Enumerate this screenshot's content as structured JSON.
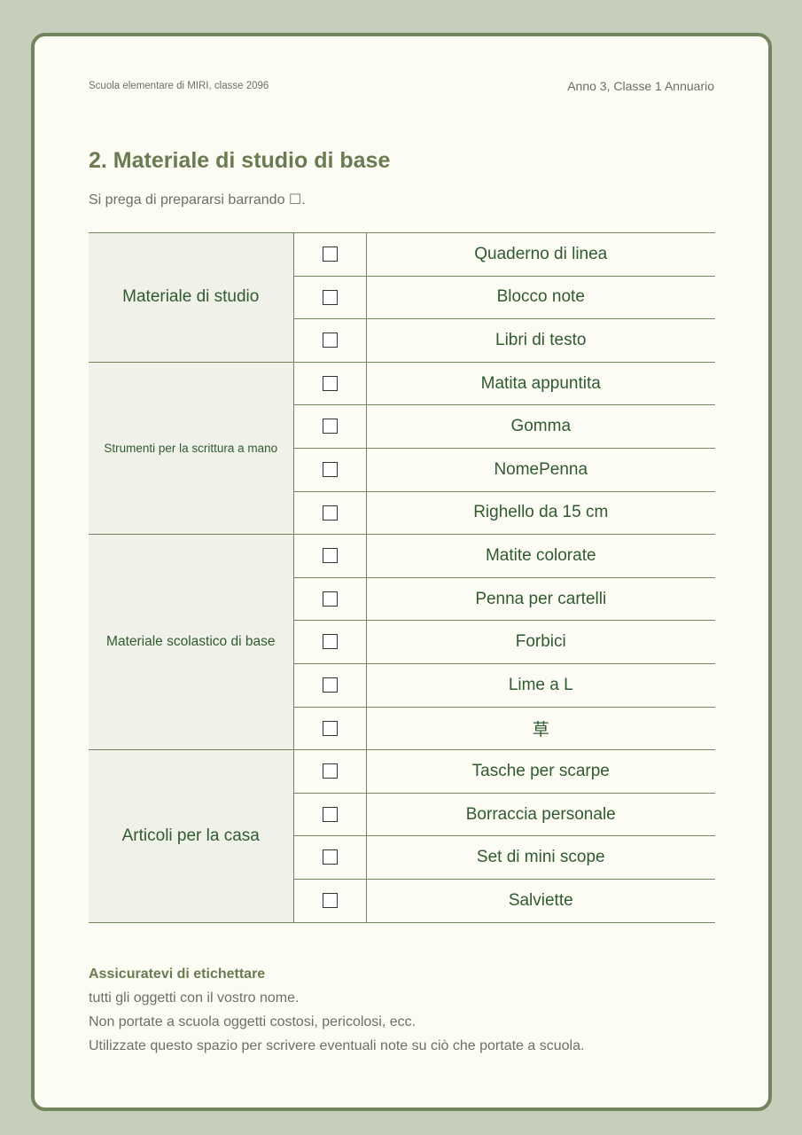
{
  "header": {
    "school": "Scuola elementare di MIRI, classe 2096",
    "yearbook": "Anno 3, Classe 1 Annuario"
  },
  "section": {
    "title": "2. Materiale di studio di base",
    "instruction": "Si prega di prepararsi barrando ☐."
  },
  "groups": [
    {
      "label": "Materiale di studio",
      "size": "lg",
      "items": [
        {
          "label": "Quaderno di linea",
          "checked": false
        },
        {
          "label": "Blocco note",
          "checked": false
        },
        {
          "label": "Libri di testo",
          "checked": false
        }
      ]
    },
    {
      "label": "Strumenti per la scrittura a mano",
      "size": "sm",
      "items": [
        {
          "label": "Matita appuntita",
          "checked": false
        },
        {
          "label": "Gomma",
          "checked": false
        },
        {
          "label": "NomePenna",
          "checked": false
        },
        {
          "label": "Righello da 15 cm",
          "checked": false
        }
      ]
    },
    {
      "label": "Materiale scolastico di base",
      "size": "md",
      "items": [
        {
          "label": "Matite colorate",
          "checked": false
        },
        {
          "label": "Penna per cartelli",
          "checked": false
        },
        {
          "label": "Forbici",
          "checked": false
        },
        {
          "label": "Lime a L",
          "checked": false
        },
        {
          "label": "草",
          "checked": false
        }
      ]
    },
    {
      "label": "Articoli per la casa",
      "size": "lg",
      "items": [
        {
          "label": "Tasche per scarpe",
          "checked": false
        },
        {
          "label": "Borraccia personale",
          "checked": false
        },
        {
          "label": "Set di mini scope",
          "checked": false
        },
        {
          "label": "Salviette",
          "checked": false
        }
      ]
    }
  ],
  "notes": {
    "heading": "Assicuratevi di etichettare",
    "lines": [
      "tutti gli oggetti con il vostro nome.",
      "Non portate a scuola oggetti costosi, pericolosi, ecc.",
      "Utilizzate questo spazio per scrivere eventuali note su ciò che portate a scuola."
    ]
  }
}
